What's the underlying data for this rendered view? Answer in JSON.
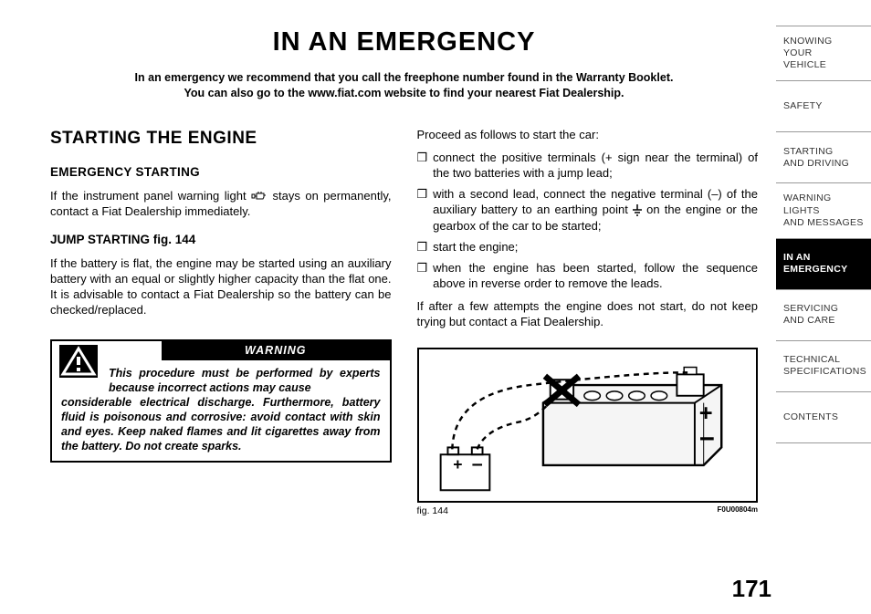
{
  "sidebar": {
    "items": [
      {
        "label": "KNOWING\nYOUR\nVEHICLE",
        "active": false
      },
      {
        "label": "SAFETY",
        "active": false
      },
      {
        "label": "STARTING\nAND DRIVING",
        "active": false
      },
      {
        "label": "WARNING LIGHTS\nAND MESSAGES",
        "active": false
      },
      {
        "label": "IN AN\nEMERGENCY",
        "active": true
      },
      {
        "label": "SERVICING\nAND CARE",
        "active": false
      },
      {
        "label": "TECHNICAL\nSPECIFICATIONS",
        "active": false
      },
      {
        "label": "CONTENTS",
        "active": false
      }
    ]
  },
  "main_title": "IN AN EMERGENCY",
  "intro_line1": "In an emergency we recommend that you call the freephone number found in the Warranty Booklet.",
  "intro_line2": "You can also go to the www.fiat.com website to find your nearest Fiat Dealership.",
  "left_col": {
    "section_heading": "STARTING THE ENGINE",
    "sub_heading": "EMERGENCY STARTING",
    "emergency_text_pre": "If the instrument panel warning light ",
    "emergency_text_post": " stays on permanently, contact a Fiat Dealership immediately.",
    "jump_heading": "JUMP STARTING fig. 144",
    "jump_text": "If the battery is flat, the engine may be started using an auxiliary battery with an equal or slightly higher capacity than the flat one. It is advisable to contact a Fiat Dealership so the battery can be checked/replaced."
  },
  "warning": {
    "header": "WARNING",
    "text_first": "This procedure must be performed by experts because incorrect actions may cause",
    "text_rest": "considerable electrical discharge. Furthermore, battery fluid is poisonous and corrosive: avoid contact with skin and eyes. Keep naked flames and lit cigarettes away from the battery. Do not create sparks."
  },
  "right_col": {
    "proceed": "Proceed as follows to start the car:",
    "bullets": [
      "connect the positive terminals (+ sign near the terminal) of the two batteries with a jump lead;",
      "with a second lead, connect the negative terminal (–) of the auxiliary battery to an earthing point __GROUND__ on the engine or the gearbox of the car to be started;",
      "start the engine;",
      "when the engine has been started, follow the sequence above in reverse order to remove the leads."
    ],
    "after_text": "If after a few attempts the engine does not start, do not keep trying but contact a Fiat Dealership."
  },
  "figure": {
    "caption": "fig. 144",
    "code": "F0U00804m"
  },
  "page_number": "171",
  "bullet_char": "❒",
  "colors": {
    "text": "#000000",
    "sidebar_border": "#999999",
    "active_bg": "#000000"
  }
}
